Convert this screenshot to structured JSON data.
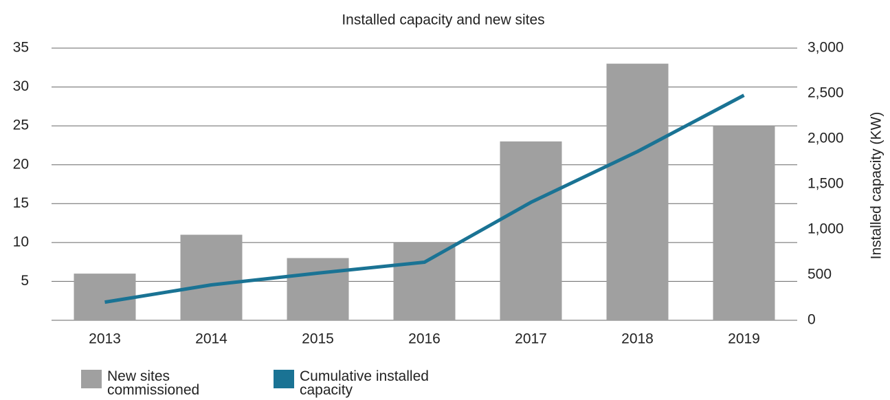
{
  "chart_data": {
    "type": "bar-line",
    "title": "Installed capacity and new sites",
    "y2_label": "Installed capacity (KW)",
    "categories": [
      "2013",
      "2014",
      "2015",
      "2016",
      "2017",
      "2018",
      "2019"
    ],
    "series": [
      {
        "name": "New sites commissioned",
        "type": "bar",
        "color": "#a0a0a0",
        "values": [
          6,
          11,
          8,
          10,
          23,
          33,
          25
        ]
      },
      {
        "name": "Cumulative installed capacity",
        "type": "line",
        "axis": "y2",
        "color": "#1a7394",
        "values": [
          200,
          390,
          520,
          640,
          1300,
          1860,
          2480
        ]
      }
    ],
    "ylim": [
      0,
      35
    ],
    "yticks": [
      5,
      10,
      15,
      20,
      25,
      30,
      35
    ],
    "y2lim": [
      0,
      3000
    ],
    "y2ticks": [
      0,
      {
        "value": 500,
        "label": "500"
      },
      {
        "value": 1000,
        "label": "1,000"
      },
      {
        "value": 1500,
        "label": "1,500"
      },
      {
        "value": 2000,
        "label": "2,000"
      },
      {
        "value": 2500,
        "label": "2,500"
      },
      {
        "value": 3000,
        "label": "3,000"
      }
    ],
    "grid": true,
    "legend": "bottom"
  }
}
